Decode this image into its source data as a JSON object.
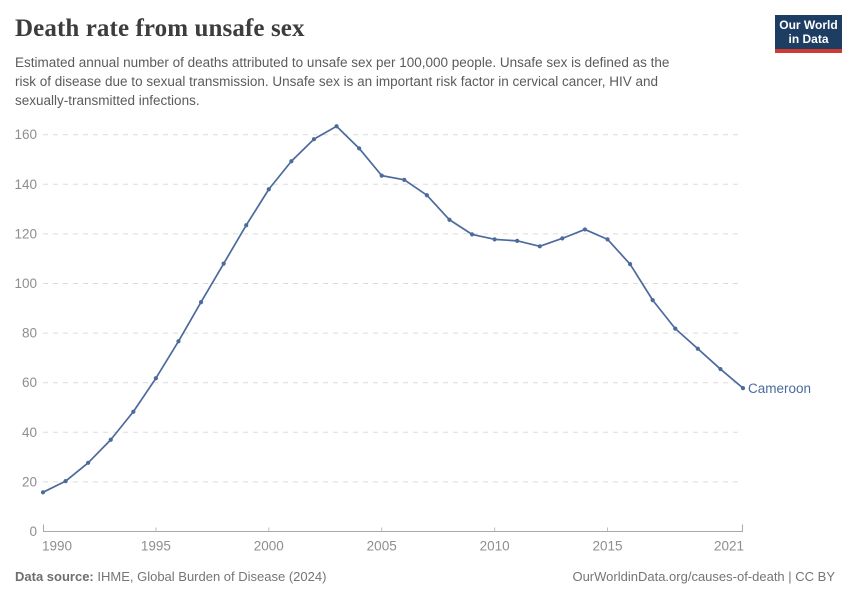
{
  "header": {
    "title": "Death rate from unsafe sex",
    "subtitle_lines": {
      "0": "Estimated annual number of deaths attributed to unsafe sex per 100,000 people. Unsafe sex is defined as the",
      "1": "risk of disease due to sexual transmission. Unsafe sex is an important risk factor in cervical cancer, HIV and",
      "2": "sexually-transmitted infections."
    },
    "logo": {
      "line1": "Our World",
      "line2": "in Data",
      "bg_color": "#1d3d63",
      "accent_color": "#cf3b32"
    }
  },
  "chart_data": {
    "type": "line",
    "title": "Death rate from unsafe sex",
    "xlabel": "",
    "ylabel": "",
    "xlim": [
      1990,
      2021
    ],
    "ylim": [
      0,
      165
    ],
    "grid": "horizontal-dashed",
    "legend_position": "end-of-line-label",
    "x_ticks": [
      1990,
      1995,
      2000,
      2005,
      2010,
      2015,
      2021
    ],
    "y_ticks": [
      0,
      20,
      40,
      60,
      80,
      100,
      120,
      140,
      160
    ],
    "series": [
      {
        "name": "Cameroon",
        "color": "#4C6A9C",
        "x": [
          1990,
          1991,
          1992,
          1993,
          1994,
          1995,
          1996,
          1997,
          1998,
          1999,
          2000,
          2001,
          2002,
          2003,
          2004,
          2005,
          2006,
          2007,
          2008,
          2009,
          2010,
          2011,
          2012,
          2013,
          2014,
          2015,
          2016,
          2017,
          2018,
          2019,
          2020,
          2021
        ],
        "values": [
          15.8,
          20.3,
          27.7,
          37.0,
          48.3,
          61.8,
          76.7,
          92.5,
          108.0,
          123.5,
          138.0,
          149.3,
          158.2,
          163.4,
          154.5,
          143.5,
          141.8,
          135.6,
          125.7,
          119.8,
          117.8,
          117.2,
          115.0,
          118.2,
          121.8,
          117.8,
          107.8,
          93.3,
          81.8,
          73.7,
          65.5,
          57.8
        ]
      }
    ],
    "colors": {
      "gridline": "#dcdcdc",
      "axis_line": "#a8a8a8",
      "tick_mark": "#bdbdbd",
      "tick_label": "#8e8e8e"
    }
  },
  "footer": {
    "source_label": "Data source:",
    "source_text": " IHME, Global Burden of Disease (2024)",
    "credit": "OurWorldinData.org/causes-of-death | CC BY"
  }
}
